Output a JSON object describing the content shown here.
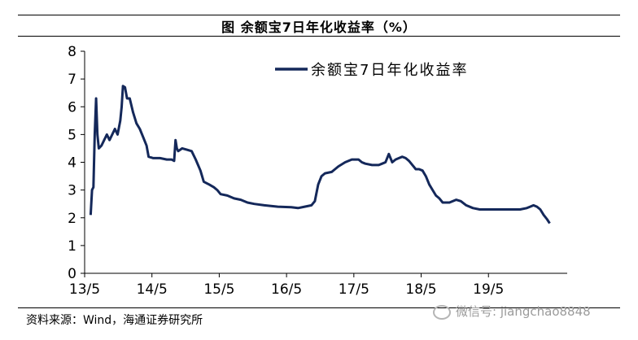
{
  "title": "图  余额宝7日年化收益率（%）",
  "source": "资料来源：Wind，海通证券研究所",
  "watermark": "微信号: jiangchao8848",
  "chart_data": {
    "type": "line",
    "ylim": [
      0,
      8
    ],
    "yticks": [
      "0",
      "1",
      "2",
      "3",
      "4",
      "5",
      "6",
      "7",
      "8"
    ],
    "xticks": [
      {
        "label": "13/5",
        "t": 2013.33
      },
      {
        "label": "14/5",
        "t": 2014.33
      },
      {
        "label": "15/5",
        "t": 2015.33
      },
      {
        "label": "16/5",
        "t": 2016.33
      },
      {
        "label": "17/5",
        "t": 2017.33
      },
      {
        "label": "18/5",
        "t": 2018.33
      },
      {
        "label": "19/5",
        "t": 2019.33
      }
    ],
    "xlim": [
      2013.33,
      2020.5
    ],
    "legend_position": "top-right",
    "color": "#14285a",
    "series": [
      {
        "name": "余额宝7日年化收益率",
        "points": [
          [
            2013.42,
            2.1
          ],
          [
            2013.44,
            3.0
          ],
          [
            2013.46,
            3.1
          ],
          [
            2013.48,
            5.0
          ],
          [
            2013.5,
            6.3
          ],
          [
            2013.52,
            5.0
          ],
          [
            2013.54,
            4.5
          ],
          [
            2013.58,
            4.6
          ],
          [
            2013.62,
            4.8
          ],
          [
            2013.66,
            5.0
          ],
          [
            2013.7,
            4.8
          ],
          [
            2013.74,
            5.0
          ],
          [
            2013.78,
            5.2
          ],
          [
            2013.82,
            5.0
          ],
          [
            2013.86,
            5.5
          ],
          [
            2013.88,
            6.0
          ],
          [
            2013.9,
            6.75
          ],
          [
            2013.93,
            6.7
          ],
          [
            2013.96,
            6.3
          ],
          [
            2014.0,
            6.3
          ],
          [
            2014.05,
            5.8
          ],
          [
            2014.1,
            5.4
          ],
          [
            2014.15,
            5.2
          ],
          [
            2014.2,
            4.9
          ],
          [
            2014.25,
            4.6
          ],
          [
            2014.28,
            4.2
          ],
          [
            2014.35,
            4.15
          ],
          [
            2014.45,
            4.15
          ],
          [
            2014.55,
            4.1
          ],
          [
            2014.62,
            4.1
          ],
          [
            2014.66,
            4.05
          ],
          [
            2014.68,
            4.8
          ],
          [
            2014.7,
            4.5
          ],
          [
            2014.72,
            4.4
          ],
          [
            2014.78,
            4.5
          ],
          [
            2014.85,
            4.45
          ],
          [
            2014.92,
            4.4
          ],
          [
            2014.98,
            4.1
          ],
          [
            2015.05,
            3.7
          ],
          [
            2015.1,
            3.3
          ],
          [
            2015.18,
            3.2
          ],
          [
            2015.25,
            3.1
          ],
          [
            2015.3,
            3.0
          ],
          [
            2015.35,
            2.85
          ],
          [
            2015.45,
            2.8
          ],
          [
            2015.55,
            2.7
          ],
          [
            2015.65,
            2.65
          ],
          [
            2015.75,
            2.55
          ],
          [
            2015.85,
            2.5
          ],
          [
            2016.0,
            2.45
          ],
          [
            2016.2,
            2.4
          ],
          [
            2016.4,
            2.38
          ],
          [
            2016.5,
            2.35
          ],
          [
            2016.6,
            2.4
          ],
          [
            2016.7,
            2.45
          ],
          [
            2016.75,
            2.6
          ],
          [
            2016.8,
            3.2
          ],
          [
            2016.85,
            3.5
          ],
          [
            2016.9,
            3.6
          ],
          [
            2017.0,
            3.65
          ],
          [
            2017.05,
            3.75
          ],
          [
            2017.1,
            3.85
          ],
          [
            2017.2,
            4.0
          ],
          [
            2017.3,
            4.1
          ],
          [
            2017.4,
            4.1
          ],
          [
            2017.45,
            4.0
          ],
          [
            2017.5,
            3.95
          ],
          [
            2017.6,
            3.9
          ],
          [
            2017.7,
            3.9
          ],
          [
            2017.75,
            3.95
          ],
          [
            2017.8,
            4.0
          ],
          [
            2017.85,
            4.3
          ],
          [
            2017.9,
            4.0
          ],
          [
            2017.95,
            4.1
          ],
          [
            2018.0,
            4.15
          ],
          [
            2018.05,
            4.2
          ],
          [
            2018.1,
            4.15
          ],
          [
            2018.15,
            4.05
          ],
          [
            2018.2,
            3.9
          ],
          [
            2018.25,
            3.75
          ],
          [
            2018.3,
            3.75
          ],
          [
            2018.35,
            3.7
          ],
          [
            2018.4,
            3.5
          ],
          [
            2018.45,
            3.2
          ],
          [
            2018.5,
            3.0
          ],
          [
            2018.55,
            2.8
          ],
          [
            2018.6,
            2.7
          ],
          [
            2018.65,
            2.55
          ],
          [
            2018.75,
            2.55
          ],
          [
            2018.85,
            2.65
          ],
          [
            2018.92,
            2.6
          ],
          [
            2019.0,
            2.45
          ],
          [
            2019.1,
            2.35
          ],
          [
            2019.2,
            2.3
          ],
          [
            2019.3,
            2.3
          ],
          [
            2019.4,
            2.3
          ],
          [
            2019.5,
            2.3
          ],
          [
            2019.6,
            2.3
          ],
          [
            2019.7,
            2.3
          ],
          [
            2019.8,
            2.3
          ],
          [
            2019.9,
            2.35
          ],
          [
            2019.95,
            2.4
          ],
          [
            2020.0,
            2.45
          ],
          [
            2020.05,
            2.4
          ],
          [
            2020.1,
            2.3
          ],
          [
            2020.15,
            2.1
          ],
          [
            2020.2,
            1.95
          ],
          [
            2020.24,
            1.8
          ]
        ]
      }
    ]
  }
}
